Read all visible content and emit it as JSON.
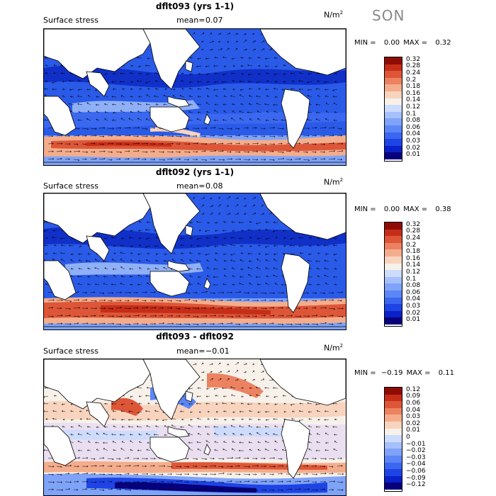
{
  "season": "SON",
  "field_label": "Surface stress",
  "mean_label": "mean=",
  "unit_base": "N/m",
  "unit_exp": "2",
  "min_label": "MIN =",
  "max_label": "MAX =",
  "colors": {
    "seq": [
      "#08007a",
      "#0a20c8",
      "#1e44e6",
      "#3a66f0",
      "#5b86f5",
      "#7fa3f8",
      "#a5c0fa",
      "#cddbfc",
      "#f7f1ea",
      "#f8d4be",
      "#f4ad8c",
      "#ec8260",
      "#de5638",
      "#c62e18",
      "#8f0c06"
    ],
    "div": [
      "#08007a",
      "#0a20c8",
      "#1e44e6",
      "#3a66f0",
      "#5b86f5",
      "#7fa3f8",
      "#a5c0fa",
      "#cddbfc",
      "#f7f1ea",
      "#f8d4be",
      "#f4ad8c",
      "#ec8260",
      "#de5638",
      "#c62e18",
      "#8f0c06"
    ]
  },
  "panels": [
    {
      "title": "dflt093 (yrs 1-1)",
      "mean": "0.07",
      "min": "0.00",
      "max": "0.32",
      "colorbar_ticks": [
        "0.32",
        "0.28",
        "0.24",
        "0.2",
        "0.18",
        "0.16",
        "0.14",
        "0.12",
        "0.1",
        "0.08",
        "0.06",
        "0.04",
        "0.03",
        "0.02",
        "0.01"
      ]
    },
    {
      "title": "dflt092 (yrs 1-1)",
      "mean": "0.08",
      "min": "0.00",
      "max": "0.38",
      "colorbar_ticks": [
        "0.32",
        "0.28",
        "0.24",
        "0.2",
        "0.18",
        "0.16",
        "0.14",
        "0.12",
        "0.1",
        "0.08",
        "0.06",
        "0.04",
        "0.03",
        "0.02",
        "0.01"
      ]
    },
    {
      "title": "dflt093 - dflt092",
      "mean": "−0.01",
      "min": "−0.19",
      "max": "0.11",
      "colorbar_ticks": [
        "0.12",
        "0.09",
        "0.06",
        "0.04",
        "0.03",
        "0.02",
        "0.01",
        "0",
        "−0.01",
        "−0.02",
        "−0.03",
        "−0.04",
        "−0.06",
        "−0.09",
        "−0.12"
      ]
    }
  ]
}
